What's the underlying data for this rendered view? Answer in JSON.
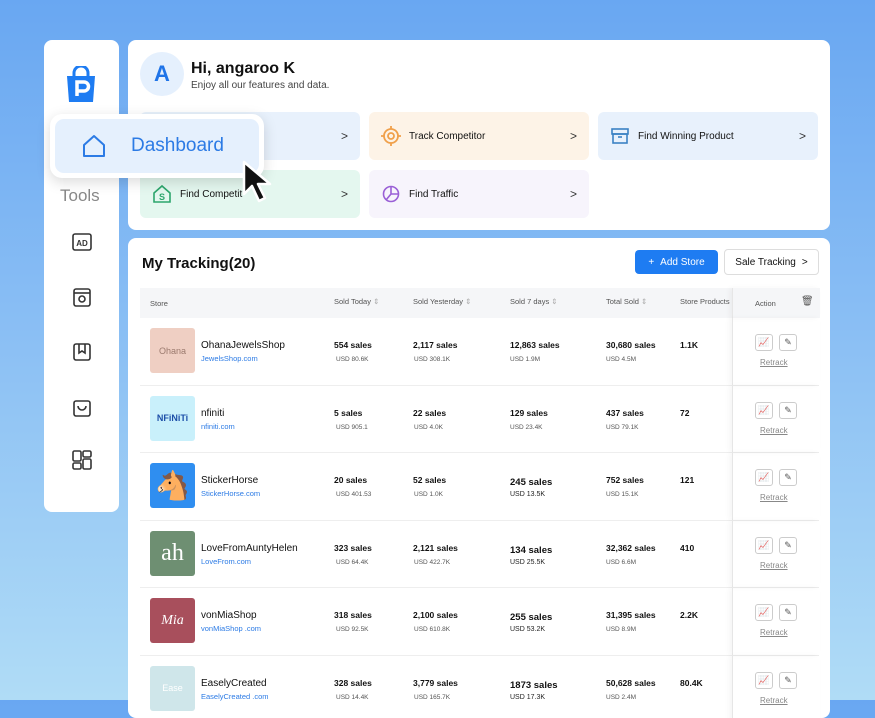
{
  "sidebar": {
    "tools_label": "Tools",
    "icons": [
      "ad-icon",
      "search-store-icon",
      "bookmark-icon",
      "inbox-icon",
      "layout-icon"
    ]
  },
  "dashboard_popup": {
    "label": "Dashboard"
  },
  "header": {
    "avatar_letter": "A",
    "greeting": "Hi, angaroo K",
    "subtitle": "Enjoy all our features and data."
  },
  "cards": [
    {
      "label": "",
      "bg": "#e8f1fc",
      "icon": "home-icon"
    },
    {
      "label": "Track Competitor",
      "bg": "#fdf3e7",
      "icon": "target-icon",
      "color": "#f0a04b"
    },
    {
      "label": "Find Winning Product",
      "bg": "#e8f1fc",
      "icon": "box-icon",
      "color": "#3b82c4"
    },
    {
      "label": "Find Competit",
      "bg": "#e4f7ef",
      "icon": "store-dollar-icon",
      "color": "#2da66d"
    },
    {
      "label": "Find Traffic",
      "bg": "#f7f4fc",
      "icon": "pie-chart-icon",
      "color": "#9a5fd6"
    }
  ],
  "tracking": {
    "title": "My Tracking(20)",
    "add_store": "Add Store",
    "sale_tracking": "Sale Tracking",
    "columns": [
      "Store",
      "Sold Today",
      "Sold Yesterday",
      "Sold 7 days",
      "Total Sold",
      "Store Products",
      "Action"
    ],
    "retrack": "Retrack",
    "rows": [
      {
        "name": "OhanaJewelsShop",
        "url": "JewelsShop.com",
        "thumb": "Ohana",
        "thumb_bg": "#efcfc3",
        "thumb_color": "#9b7a6e",
        "today": "554 sales",
        "today_usd": "USD 80.6K",
        "yest": "2,117 sales",
        "yest_usd": "USD 308.1K",
        "week": "12,863 sales",
        "week_usd": "USD 1.9M",
        "total": "30,680 sales",
        "total_usd": "USD 4.5M",
        "products": "1.1K"
      },
      {
        "name": "nfiniti",
        "url": "nfiniti.com",
        "thumb": "NFiNiTi",
        "thumb_bg": "#c9f0fb",
        "thumb_color": "#1d4fa8",
        "today": "5 sales",
        "today_usd": "USD 905.1",
        "yest": "22 sales",
        "yest_usd": "USD 4.0K",
        "week": "129 sales",
        "week_usd": "USD 23.4K",
        "total": "437 sales",
        "total_usd": "USD 79.1K",
        "products": "72"
      },
      {
        "name": "StickerHorse",
        "url": "StickerHorse.com",
        "thumb": "🐴",
        "thumb_bg": "#2f8ef0",
        "thumb_color": "#5a3a1d",
        "today": "20 sales",
        "today_usd": "USD 401.53",
        "yest": "52 sales",
        "yest_usd": "USD 1.0K",
        "week": "245 sales",
        "week_usd": "USD 13.5K",
        "total": "752 sales",
        "total_usd": "USD 15.1K",
        "products": "121"
      },
      {
        "name": "LoveFromAuntyHelen",
        "url": "LoveFrom.com",
        "thumb": "ah",
        "thumb_bg": "#6e8f72",
        "thumb_color": "#ffffff",
        "today": "323 sales",
        "today_usd": "USD 64.4K",
        "yest": "2,121 sales",
        "yest_usd": "USD 422.7K",
        "week": "134 sales",
        "week_usd": "USD 25.5K",
        "total": "32,362 sales",
        "total_usd": "USD 6.6M",
        "products": "410"
      },
      {
        "name": "vonMiaShop",
        "url": "vonMiaShop .com",
        "thumb": "Mia",
        "thumb_bg": "#a84f5c",
        "thumb_color": "#ffffff",
        "today": "318 sales",
        "today_usd": "USD 92.5K",
        "yest": "2,100 sales",
        "yest_usd": "USD 610.8K",
        "week": "255 sales",
        "week_usd": "USD 53.2K",
        "total": "31,395 sales",
        "total_usd": "USD 8.9M",
        "products": "2.2K"
      },
      {
        "name": "EaselyCreated",
        "url": "EaselyCreated .com",
        "thumb": "Ease",
        "thumb_bg": "#cfe6ea",
        "thumb_color": "#ffffff",
        "today": "328 sales",
        "today_usd": "USD 14.4K",
        "yest": "3,779 sales",
        "yest_usd": "USD 165.7K",
        "week": "1873 sales",
        "week_usd": "USD 17.3K",
        "total": "50,628 sales",
        "total_usd": "USD 2.4M",
        "products": "80.4K"
      }
    ]
  },
  "colors": {
    "accent": "#1e7cf2",
    "link": "#2c7be5"
  }
}
